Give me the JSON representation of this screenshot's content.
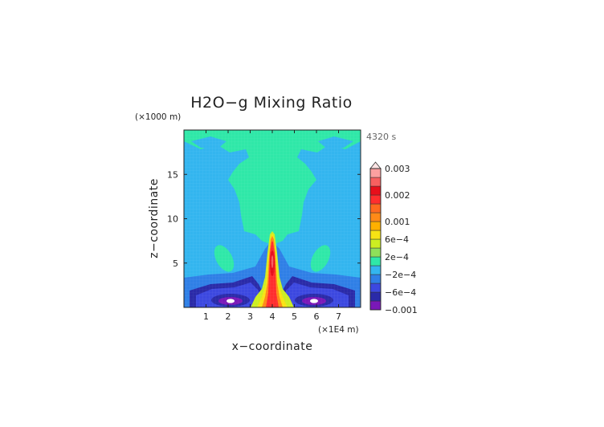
{
  "chart_data": {
    "type": "heatmap",
    "title": "H2O−g Mixing Ratio",
    "y_unit_label": "(×1000 m)",
    "x_unit_label": "(×1E4 m)",
    "xlabel": "x−coordinate",
    "ylabel": "z−coordinate",
    "time_label": "4320 s",
    "xlim": [
      0,
      8
    ],
    "ylim": [
      0,
      20
    ],
    "x_ticks": [
      1,
      2,
      3,
      4,
      5,
      6,
      7
    ],
    "x_tick_labels": [
      "1",
      "2",
      "3",
      "4",
      "5",
      "6",
      "7"
    ],
    "y_ticks": [
      5,
      10,
      15
    ],
    "y_tick_labels": [
      "5",
      "10",
      "15"
    ],
    "grid": false,
    "legend_position": "right",
    "colorbar": {
      "colors": [
        "#7a18b8",
        "#2a2aa8",
        "#3c48e0",
        "#2f7fe6",
        "#33b5ef",
        "#2fe8a8",
        "#8fe05a",
        "#ccee22",
        "#f7e314",
        "#ffb000",
        "#ff8a18",
        "#ff6a1f",
        "#ff2e2e",
        "#e70f1b",
        "#f76060",
        "#fca0a0"
      ],
      "labels": [
        "0.003",
        "0.002",
        "0.001",
        "6e−4",
        "2e−4",
        "−2e−4",
        "−6e−4",
        "−0.001"
      ],
      "label_band_index": [
        16,
        13,
        10,
        8,
        6,
        4,
        2,
        0
      ],
      "extend_top": true
    },
    "fields": [
      {
        "level": "background",
        "description": "near-zero anomaly (-2e-4 to 0) across most of domain",
        "color": "#33b5ef"
      },
      {
        "level": "0 to 2e-4",
        "color": "#2fe8a8",
        "x_range": [
          0.0,
          8.0
        ],
        "z_range": [
          2.0,
          20.0
        ]
      },
      {
        "level": "-6e-4 to -2e-4",
        "color": "#2f7fe6",
        "x_range": [
          0.0,
          8.0
        ],
        "z_range": [
          0.5,
          4.0
        ]
      },
      {
        "level": "-0.001 to -6e-4",
        "color": "#2a2aa8",
        "x_range": [
          1.0,
          7.0
        ],
        "z_range": [
          0.3,
          1.8
        ]
      },
      {
        "level": "< -0.001",
        "color": "#7a18b8",
        "x_range": [
          1.5,
          6.5
        ],
        "z_range": [
          0.3,
          1.3
        ]
      },
      {
        "level": "2e-4 to 0.001",
        "color": "#ffb000",
        "x_range": [
          3.6,
          4.4
        ],
        "z_range": [
          0.0,
          8.5
        ]
      },
      {
        "level": "0.001 to 0.002",
        "color": "#ff2e2e",
        "x_range": [
          3.8,
          4.2
        ],
        "z_range": [
          1.5,
          8.0
        ]
      },
      {
        "level": "0.002 to 0.003",
        "color": "#e70f1b",
        "x_range": [
          3.9,
          4.1
        ],
        "z_range": [
          4.0,
          7.5
        ]
      }
    ]
  }
}
